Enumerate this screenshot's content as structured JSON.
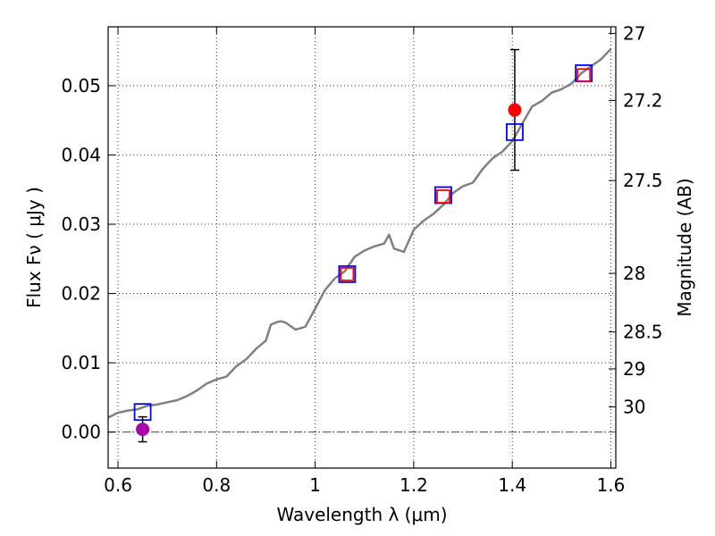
{
  "chart_data": {
    "type": "scatter",
    "title": "",
    "xlabel": "Wavelength  λ (μm)",
    "ylabel": "Flux  Fν  ( μJy )",
    "y2label": "Magnitude (AB)",
    "xlim": [
      0.58,
      1.61
    ],
    "ylim": [
      -0.0052,
      0.0585
    ],
    "grid": true,
    "x_ticks": [
      {
        "value": 0.6,
        "label": "0.6"
      },
      {
        "value": 0.8,
        "label": "0.8"
      },
      {
        "value": 1.0,
        "label": "1"
      },
      {
        "value": 1.2,
        "label": "1.2"
      },
      {
        "value": 1.4,
        "label": "1.4"
      },
      {
        "value": 1.6,
        "label": "1.6"
      }
    ],
    "y_ticks": [
      {
        "value": 0.0,
        "label": "0.00"
      },
      {
        "value": 0.01,
        "label": "0.01"
      },
      {
        "value": 0.02,
        "label": "0.02"
      },
      {
        "value": 0.03,
        "label": "0.03"
      },
      {
        "value": 0.04,
        "label": "0.04"
      },
      {
        "value": 0.05,
        "label": "0.05"
      }
    ],
    "y2_ticks": [
      {
        "value": 27.0,
        "label": "27"
      },
      {
        "value": 27.2,
        "label": "27.2"
      },
      {
        "value": 27.5,
        "label": "27.5"
      },
      {
        "value": 28.0,
        "label": "28"
      },
      {
        "value": 28.5,
        "label": "28.5"
      },
      {
        "value": 29.0,
        "label": "29"
      },
      {
        "value": 30.0,
        "label": "30"
      }
    ],
    "series": [
      {
        "kind": "spectrum",
        "color": "#808080",
        "x": [
          0.58,
          0.6,
          0.62,
          0.64,
          0.66,
          0.68,
          0.7,
          0.72,
          0.74,
          0.76,
          0.78,
          0.8,
          0.82,
          0.84,
          0.86,
          0.88,
          0.9,
          0.91,
          0.92,
          0.93,
          0.94,
          0.96,
          0.98,
          1.0,
          1.02,
          1.04,
          1.06,
          1.08,
          1.1,
          1.12,
          1.14,
          1.15,
          1.16,
          1.18,
          1.2,
          1.22,
          1.24,
          1.26,
          1.28,
          1.3,
          1.32,
          1.34,
          1.36,
          1.38,
          1.4,
          1.42,
          1.44,
          1.46,
          1.48,
          1.5,
          1.52,
          1.54,
          1.56,
          1.58,
          1.6
        ],
        "y": [
          0.0021,
          0.0028,
          0.0031,
          0.0033,
          0.0038,
          0.004,
          0.0043,
          0.0046,
          0.0052,
          0.006,
          0.007,
          0.0076,
          0.008,
          0.0095,
          0.0105,
          0.012,
          0.0132,
          0.0155,
          0.0158,
          0.016,
          0.0158,
          0.0148,
          0.0152,
          0.0178,
          0.0205,
          0.0222,
          0.0232,
          0.0253,
          0.0262,
          0.0268,
          0.0272,
          0.0285,
          0.0265,
          0.026,
          0.0292,
          0.0305,
          0.0315,
          0.0328,
          0.0345,
          0.0355,
          0.036,
          0.038,
          0.0395,
          0.0405,
          0.042,
          0.0445,
          0.047,
          0.0478,
          0.049,
          0.0495,
          0.0503,
          0.0518,
          0.0528,
          0.0538,
          0.0553
        ]
      },
      {
        "kind": "synthetic-photometry",
        "color": "#0000ff",
        "marker": "square",
        "x": [
          0.65,
          1.065,
          1.26,
          1.405,
          1.545
        ],
        "y": [
          0.0029,
          0.0228,
          0.0342,
          0.0433,
          0.0518
        ]
      },
      {
        "kind": "observed-photometry",
        "color": "#ff0000",
        "marker": "square",
        "x": [
          1.065,
          1.26,
          1.545
        ],
        "y": [
          0.0228,
          0.034,
          0.0515
        ]
      },
      {
        "kind": "measured-detection",
        "color": "#ff0000",
        "marker": "circle",
        "x": [
          1.405
        ],
        "y": [
          0.0465
        ],
        "yerr": [
          0.0087
        ]
      },
      {
        "kind": "measured-nondetection",
        "color": "#aa00aa",
        "marker": "circle",
        "x": [
          0.65
        ],
        "y": [
          0.0004
        ],
        "yerr": [
          0.0018
        ]
      }
    ],
    "reference_line": {
      "y": 0.0,
      "style": "dashdot",
      "color": "#555555"
    }
  }
}
